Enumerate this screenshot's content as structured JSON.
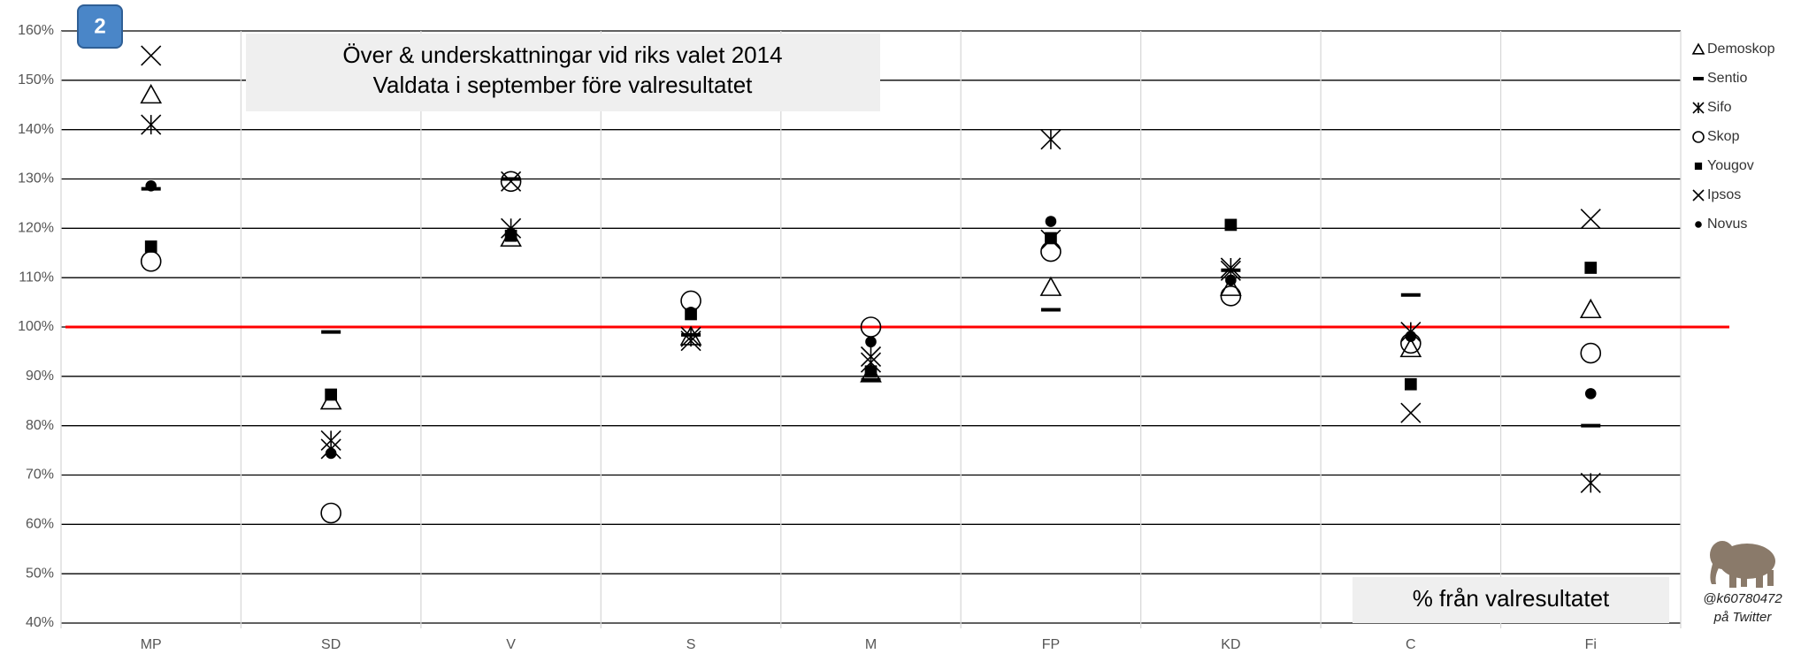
{
  "badge": "2",
  "chart_data": {
    "type": "scatter",
    "title": "Över & underskattningar vid riks valet 2014",
    "subtitle": "Valdata i september före valresultatet",
    "annotation": "% från valresultatet",
    "credit": [
      "@k60780472",
      "på Twitter"
    ],
    "categories": [
      "MP",
      "SD",
      "V",
      "S",
      "M",
      "FP",
      "KD",
      "C",
      "Fi"
    ],
    "ylim": [
      40,
      160
    ],
    "yticks": [
      {
        "value": 40,
        "label": "40%"
      },
      {
        "value": 50,
        "label": "50%"
      },
      {
        "value": 60,
        "label": "60%"
      },
      {
        "value": 70,
        "label": "70%"
      },
      {
        "value": 80,
        "label": "80%"
      },
      {
        "value": 90,
        "label": "90%"
      },
      {
        "value": 100,
        "label": "100%"
      },
      {
        "value": 110,
        "label": "110%"
      },
      {
        "value": 120,
        "label": "120%"
      },
      {
        "value": 130,
        "label": "130%"
      },
      {
        "value": 140,
        "label": "140%"
      },
      {
        "value": 150,
        "label": "150%"
      },
      {
        "value": 160,
        "label": "160%"
      }
    ],
    "grid": true,
    "reference_line": {
      "value": 100,
      "color": "#ff0000"
    },
    "legend": "right",
    "series": [
      {
        "name": "Demoskop",
        "color": "#000000",
        "marker": "triangle",
        "values": [
          147,
          85,
          118,
          98,
          90.5,
          108,
          108,
          95.6,
          103.5
        ]
      },
      {
        "name": "Sentio",
        "color": "#000000",
        "marker": "dash",
        "values": [
          128,
          99,
          130,
          98.4,
          89.3,
          103.5,
          111.5,
          106.5,
          80
        ]
      },
      {
        "name": "Sifo",
        "color": "#000000",
        "marker": "asterisk",
        "values": [
          141,
          77,
          120,
          98,
          94,
          138,
          112,
          99,
          68.4
        ]
      },
      {
        "name": "Skop",
        "color": "#000000",
        "marker": "circle",
        "values": [
          113.3,
          62.3,
          129.5,
          105.3,
          100,
          115.3,
          106.3,
          96.7,
          94.7
        ]
      },
      {
        "name": "Yougov",
        "color": "#000000",
        "marker": "square",
        "values": [
          116.3,
          86.3,
          118.5,
          102.6,
          91,
          118,
          120.7,
          88.4,
          112
        ]
      },
      {
        "name": "Ipsos",
        "color": "#000000",
        "marker": "x",
        "values": [
          155,
          75.3,
          129.5,
          97.2,
          92.8,
          117.7,
          111.4,
          82.6,
          121.9
        ]
      },
      {
        "name": "Novus",
        "color": "#000000",
        "marker": "dot",
        "values": [
          128.6,
          74.4,
          119,
          103,
          97,
          121.4,
          109.5,
          98.1,
          86.5
        ]
      }
    ]
  }
}
